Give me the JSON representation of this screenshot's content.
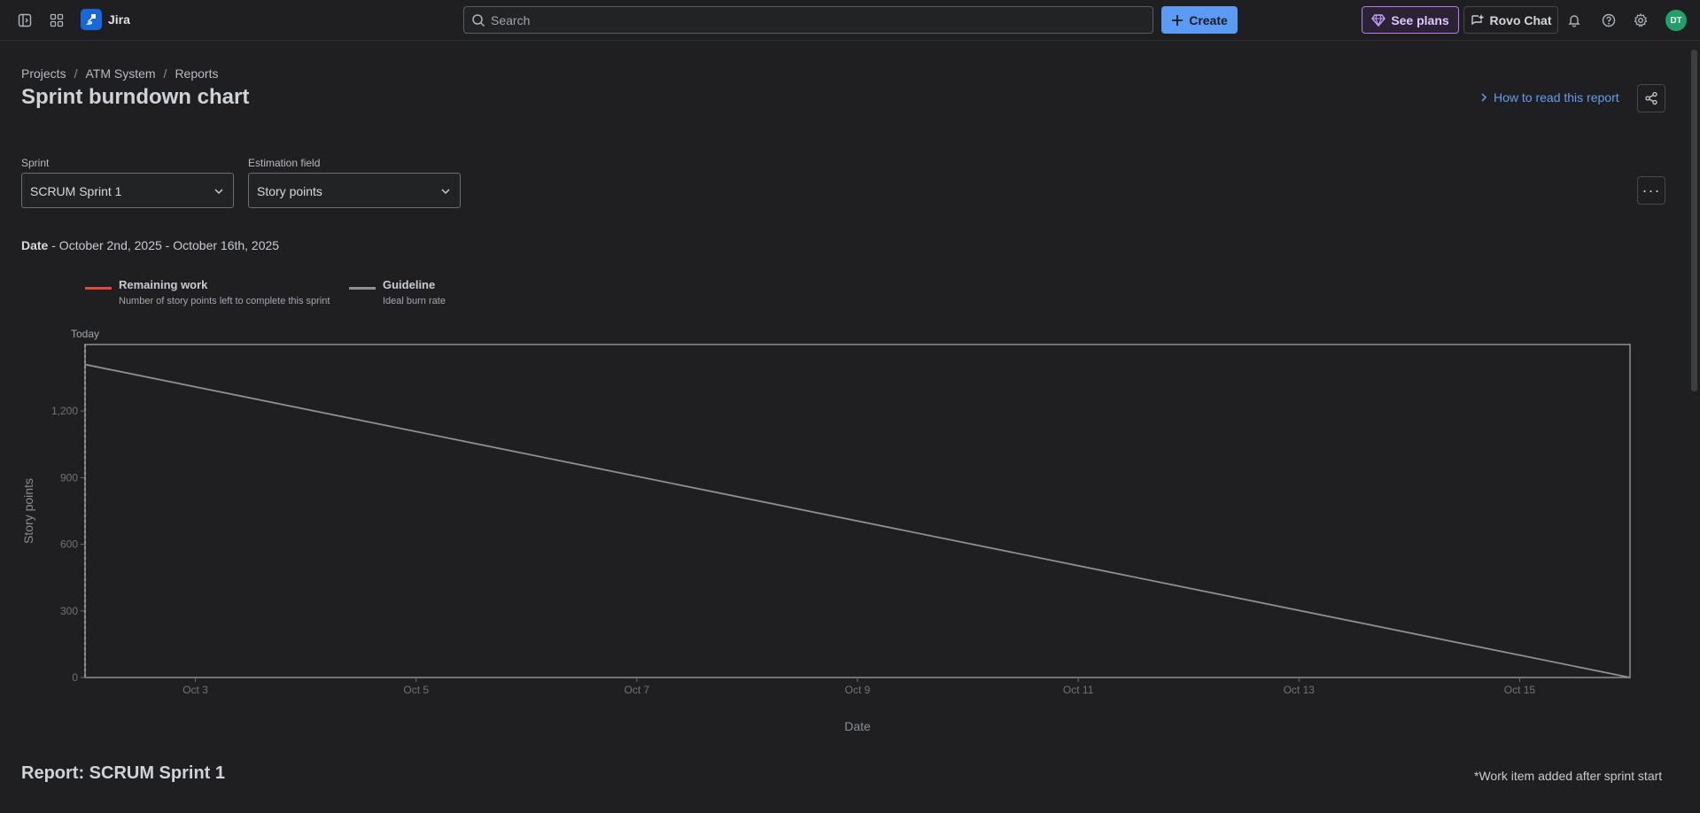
{
  "topbar": {
    "app_name": "Jira",
    "search_placeholder": "Search",
    "create_label": "Create",
    "see_plans_label": "See plans",
    "rovo_chat_label": "Rovo Chat",
    "avatar_initials": "DT",
    "icons": [
      "sidebar-toggle-icon",
      "app-switcher-icon",
      "jira-logo",
      "search-icon",
      "plus-icon",
      "gem-icon",
      "rovo-chat-icon",
      "bell-icon",
      "help-icon",
      "gear-icon"
    ]
  },
  "breadcrumb": {
    "items": [
      "Projects",
      "ATM System",
      "Reports"
    ]
  },
  "page": {
    "title": "Sprint burndown chart",
    "how_to_link": "How to read this report"
  },
  "filters": {
    "sprint_label": "Sprint",
    "sprint_value": "SCRUM Sprint 1",
    "estimation_label": "Estimation field",
    "estimation_value": "Story points"
  },
  "date_range": {
    "label": "Date",
    "value": " - October 2nd, 2025 - October 16th, 2025"
  },
  "legend": [
    {
      "title": "Remaining work",
      "desc": "Number of story points left to complete this sprint",
      "color": "#e2483d"
    },
    {
      "title": "Guideline",
      "desc": "Ideal burn rate",
      "color": "#8c8f94"
    }
  ],
  "chart_data": {
    "type": "line",
    "xlabel": "Date",
    "ylabel": "Story points",
    "today_label": "Today",
    "x_ticks": [
      "Oct 3",
      "Oct 5",
      "Oct 7",
      "Oct 9",
      "Oct 11",
      "Oct 13",
      "Oct 15"
    ],
    "y_ticks": [
      0,
      300,
      600,
      900,
      1200
    ],
    "y_tick_labels": [
      "0",
      "300",
      "600",
      "900",
      "1,200"
    ],
    "xlim": [
      "2025-10-02",
      "2025-10-16"
    ],
    "ylim": [
      0,
      1500
    ],
    "series": [
      {
        "name": "Guideline",
        "color": "#8c8f94",
        "points": [
          {
            "x": "2025-10-02",
            "y": 1410
          },
          {
            "x": "2025-10-16",
            "y": 0
          }
        ]
      },
      {
        "name": "Remaining work",
        "color": "#e2483d",
        "points": []
      }
    ],
    "today": "2025-10-02",
    "grid": false
  },
  "report": {
    "title": "Report: SCRUM Sprint 1",
    "note": "*Work item added after sprint start"
  }
}
